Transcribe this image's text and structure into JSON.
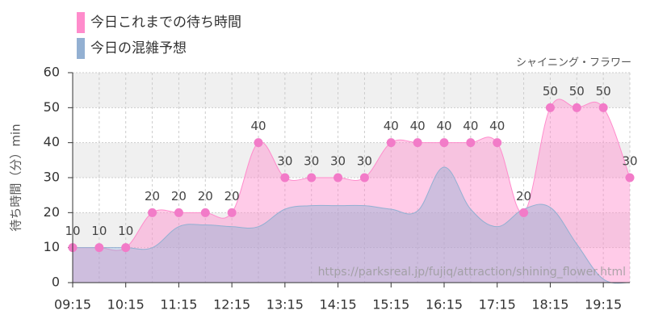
{
  "chart_data": {
    "type": "area",
    "subtitle": "シャイニング・フラワー",
    "y_label": "待ち時間（分）min",
    "watermark": "https://parksreal.jp/fujiq/attraction/shining_flower.html",
    "categories": [
      "09:15",
      null,
      "10:15",
      null,
      "11:15",
      null,
      "12:15",
      null,
      "13:15",
      null,
      "14:15",
      null,
      "15:15",
      null,
      "16:15",
      null,
      "17:15",
      null,
      "18:15",
      null,
      "19:15",
      null
    ],
    "series": [
      {
        "name": "今日これまでの待ち時間",
        "color": "#ff8ccc",
        "markers": true,
        "values": [
          10,
          10,
          10,
          20,
          20,
          20,
          20,
          40,
          30,
          30,
          30,
          30,
          40,
          40,
          40,
          40,
          40,
          20,
          50,
          50,
          50,
          30
        ]
      },
      {
        "name": "今日の混雑予想",
        "color": "#93b0d2",
        "markers": false,
        "values": [
          10,
          10,
          10,
          10,
          16,
          16.5,
          16,
          16,
          21,
          22,
          22,
          22,
          21,
          20.5,
          33,
          21,
          16,
          21,
          21.5,
          11,
          1,
          0
        ]
      }
    ],
    "ylim": [
      0,
      60
    ],
    "yticks": [
      0,
      10,
      20,
      30,
      40,
      50,
      60
    ],
    "grid": true
  }
}
